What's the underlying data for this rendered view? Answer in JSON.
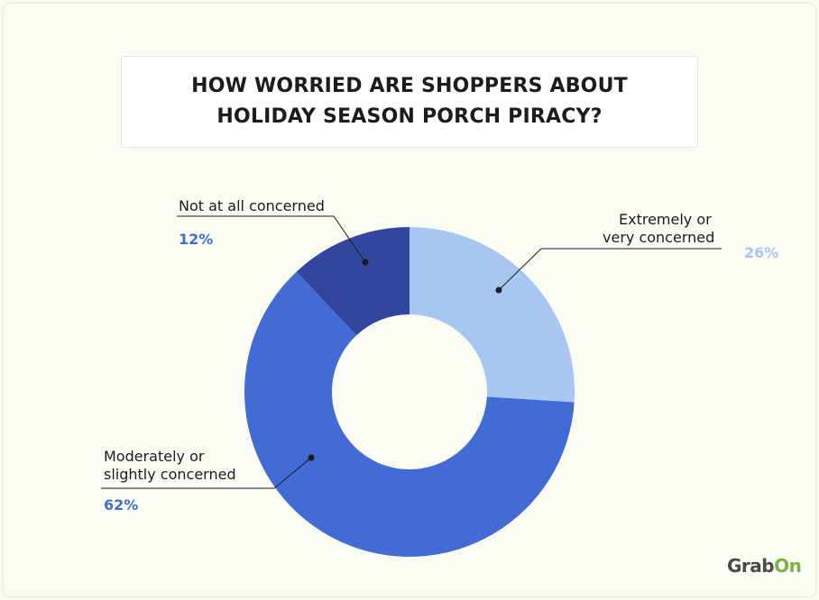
{
  "chart_data": {
    "type": "pie",
    "title": "HOW WORRIED ARE SHOPPERS ABOUT HOLIDAY SEASON PORCH PIRACY?",
    "slices": [
      {
        "label": "Extremely or very concerned",
        "label_lines": [
          "Extremely or",
          "very concerned"
        ],
        "value": 26,
        "display": "26%",
        "color": "#a8c6f2"
      },
      {
        "label": "Moderately or slightly concerned",
        "label_lines": [
          "Moderately or",
          "slightly concerned"
        ],
        "value": 62,
        "display": "62%",
        "color": "#436bd6"
      },
      {
        "label": "Not at all concerned",
        "label_lines": [
          "Not at all concerned"
        ],
        "value": 12,
        "display": "12%",
        "color": "#32469e"
      }
    ],
    "donut": true
  },
  "brand": {
    "logo_part1": "Grab",
    "logo_part2": "On"
  },
  "colors": {
    "background": "#fafcf3",
    "title_box": "#ffffff",
    "leader": "#1c1c1c"
  }
}
